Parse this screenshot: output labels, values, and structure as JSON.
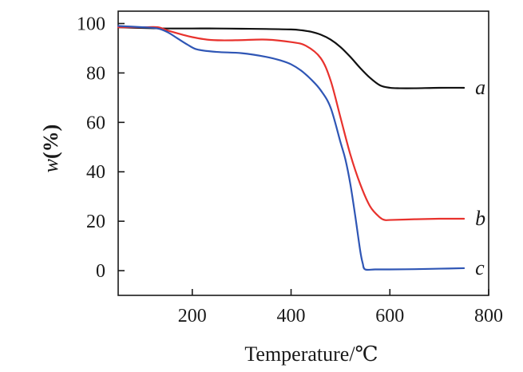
{
  "chart_data": {
    "type": "line",
    "title": "",
    "xlabel": "Temperature/℃",
    "ylabel_var": "w",
    "ylabel_unit": "(%)",
    "xlim": [
      50,
      800
    ],
    "ylim": [
      -10,
      105
    ],
    "xticks": [
      200,
      400,
      600,
      800
    ],
    "xtick_labels": [
      "200",
      "400",
      "600",
      "800"
    ],
    "yticks": [
      0,
      20,
      40,
      60,
      80,
      100
    ],
    "ytick_labels": [
      "0",
      "20",
      "40",
      "60",
      "80",
      "100"
    ],
    "grid": false,
    "series": [
      {
        "name": "a",
        "color": "#111111",
        "x": [
          50,
          100,
          150,
          200,
          250,
          300,
          350,
          400,
          420,
          440,
          460,
          480,
          500,
          520,
          540,
          560,
          580,
          600,
          620,
          650,
          700,
          750
        ],
        "y": [
          98.5,
          98.2,
          98,
          98,
          98,
          97.9,
          97.8,
          97.6,
          97.3,
          96.7,
          95.5,
          93.5,
          90.5,
          86.5,
          82,
          78,
          75,
          74,
          73.8,
          73.8,
          74,
          74
        ]
      },
      {
        "name": "b",
        "color": "#e8322d",
        "x": [
          50,
          100,
          130,
          150,
          180,
          200,
          230,
          260,
          300,
          350,
          400,
          430,
          460,
          480,
          500,
          520,
          540,
          560,
          580,
          590,
          600,
          650,
          700,
          750
        ],
        "y": [
          98.5,
          98.5,
          98.5,
          97.2,
          95.5,
          94.5,
          93.5,
          93.2,
          93.3,
          93.5,
          92.5,
          91,
          86,
          77,
          62,
          47,
          35,
          26,
          21.5,
          20.5,
          20.5,
          20.8,
          21,
          21
        ]
      },
      {
        "name": "c",
        "color": "#2f56b5",
        "x": [
          50,
          100,
          130,
          150,
          170,
          190,
          210,
          250,
          300,
          350,
          380,
          400,
          420,
          440,
          460,
          480,
          500,
          510,
          520,
          530,
          540,
          545,
          550,
          570,
          600,
          650,
          700,
          750
        ],
        "y": [
          99,
          98.5,
          98,
          96.5,
          94,
          91.5,
          89.5,
          88.5,
          88,
          86.5,
          85,
          83.5,
          81,
          77.5,
          73,
          66,
          52,
          45,
          35,
          22,
          8,
          3,
          0.5,
          0.5,
          0.5,
          0.6,
          0.8,
          1
        ]
      }
    ],
    "series_labels": [
      "a",
      "b",
      "c"
    ]
  }
}
